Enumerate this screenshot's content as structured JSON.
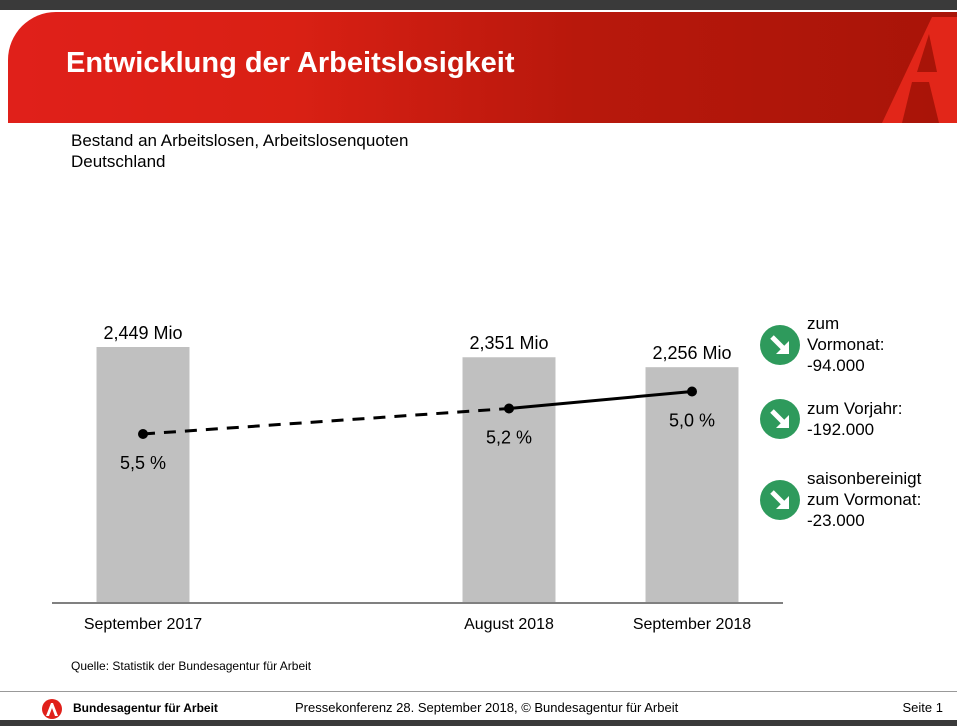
{
  "header": {
    "title": "Entwicklung der Arbeitslosigkeit"
  },
  "subtitle": {
    "line1": "Bestand an Arbeitslosen, Arbeitslosenquoten",
    "line2": "Deutschland"
  },
  "colors": {
    "brand_red": "#e0201a",
    "bar_gray": "#c0c0c0",
    "indicator_green": "#2e9a5c"
  },
  "indicators": [
    {
      "icon": "arrow-down-right-icon",
      "lines": [
        "zum",
        "Vormonat:",
        "-94.000"
      ]
    },
    {
      "icon": "arrow-down-right-icon",
      "lines": [
        "zum Vorjahr:",
        "-192.000"
      ]
    },
    {
      "icon": "arrow-down-right-icon",
      "lines": [
        "saisonbereinigt",
        "zum Vormonat:",
        "-23.000"
      ]
    }
  ],
  "chart_data": {
    "type": "bar",
    "title": "Bestand an Arbeitslosen, Arbeitslosenquoten",
    "xlabel": "",
    "ylabel": "",
    "categories": [
      "September 2017",
      "August 2018",
      "September 2018"
    ],
    "series": [
      {
        "name": "Bestand an Arbeitslosen (Mio)",
        "type": "bar",
        "values": [
          2.449,
          2.351,
          2.256
        ],
        "labels": [
          "2,449 Mio",
          "2,351 Mio",
          "2,256 Mio"
        ]
      },
      {
        "name": "Arbeitslosenquote (%)",
        "type": "line",
        "values": [
          5.5,
          5.2,
          5.0
        ],
        "labels": [
          "5,5 %",
          "5,2 %",
          "5,0 %"
        ],
        "segment_styles": [
          "dashed",
          "solid"
        ]
      }
    ],
    "grid": false,
    "legend": "none"
  },
  "source": "Quelle: Statistik der Bundesagentur für Arbeit",
  "footer": {
    "org": "Bundesagentur für Arbeit",
    "center": "Pressekonferenz 28. September 2018, © Bundesagentur für Arbeit",
    "page": "Seite 1"
  }
}
